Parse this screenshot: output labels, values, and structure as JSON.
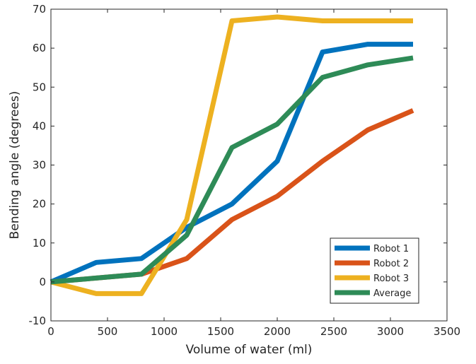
{
  "chart_data": {
    "type": "line",
    "xlabel": "Volume of water (ml)",
    "ylabel": "Bending angle (degrees)",
    "xlim": [
      0,
      3500
    ],
    "ylim": [
      -10,
      70
    ],
    "xticks": [
      0,
      500,
      1000,
      1500,
      2000,
      2500,
      3000,
      3500
    ],
    "yticks": [
      -10,
      0,
      10,
      20,
      30,
      40,
      50,
      60,
      70
    ],
    "grid": false,
    "legend_position": "bottom-right",
    "x": [
      0,
      400,
      800,
      1200,
      1600,
      2000,
      2400,
      2800,
      3200
    ],
    "series": [
      {
        "name": "Robot 1",
        "color": "#0072BD",
        "values": [
          0,
          5,
          6,
          14,
          20,
          31,
          59,
          61,
          61
        ]
      },
      {
        "name": "Robot 2",
        "color": "#D95319",
        "values": [
          0,
          1,
          2,
          6,
          16,
          22,
          31,
          39,
          44
        ]
      },
      {
        "name": "Robot 3",
        "color": "#EDB120",
        "values": [
          0,
          -3,
          -3,
          16,
          67,
          68,
          67,
          67,
          67
        ]
      },
      {
        "name": "Average",
        "color": "#2E8B57",
        "values": [
          0,
          1,
          2,
          12,
          34.5,
          40.5,
          52.5,
          55.7,
          57.5
        ]
      }
    ]
  }
}
